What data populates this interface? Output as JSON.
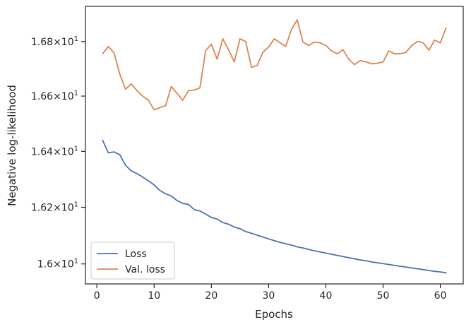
{
  "chart_data": {
    "type": "line",
    "title": "",
    "xlabel": "Epochs",
    "ylabel": "Negative log-likelihood",
    "yscale": "log",
    "xlim": [
      -2,
      64
    ],
    "ylim": [
      15.93,
      16.93
    ],
    "grid": false,
    "legend_position": "lower-left",
    "x_ticks": [
      {
        "value": 0,
        "label": "0"
      },
      {
        "value": 10,
        "label": "10"
      },
      {
        "value": 20,
        "label": "20"
      },
      {
        "value": 30,
        "label": "30"
      },
      {
        "value": 40,
        "label": "40"
      },
      {
        "value": 50,
        "label": "50"
      },
      {
        "value": 60,
        "label": "60"
      }
    ],
    "y_ticks": [
      {
        "value": 16.0,
        "mant": "1.6",
        "exp": "1"
      },
      {
        "value": 16.2,
        "mant": "1.62",
        "exp": "1"
      },
      {
        "value": 16.4,
        "mant": "1.64",
        "exp": "1"
      },
      {
        "value": 16.6,
        "mant": "1.66",
        "exp": "1"
      },
      {
        "value": 16.8,
        "mant": "1.68",
        "exp": "1"
      }
    ],
    "x": [
      1,
      2,
      3,
      4,
      5,
      6,
      7,
      8,
      9,
      10,
      11,
      12,
      13,
      14,
      15,
      16,
      17,
      18,
      19,
      20,
      21,
      22,
      23,
      24,
      25,
      26,
      27,
      28,
      29,
      30,
      31,
      32,
      33,
      34,
      35,
      36,
      37,
      38,
      39,
      40,
      41,
      42,
      43,
      44,
      45,
      46,
      47,
      48,
      49,
      50,
      51,
      52,
      53,
      54,
      55,
      56,
      57,
      58,
      59,
      60,
      61
    ],
    "series": [
      {
        "name": "Loss",
        "color": "#4c72b0",
        "values": [
          16.44,
          16.395,
          16.398,
          16.388,
          16.35,
          16.33,
          16.32,
          16.308,
          16.294,
          16.28,
          16.26,
          16.248,
          16.24,
          16.224,
          16.214,
          16.21,
          16.192,
          16.187,
          16.176,
          16.164,
          16.158,
          16.146,
          16.14,
          16.13,
          16.124,
          16.114,
          16.108,
          16.101,
          16.095,
          16.088,
          16.082,
          16.076,
          16.071,
          16.066,
          16.06,
          16.056,
          16.051,
          16.046,
          16.042,
          16.038,
          16.034,
          16.03,
          16.026,
          16.022,
          16.018,
          16.014,
          16.011,
          16.007,
          16.004,
          16.001,
          15.998,
          15.995,
          15.992,
          15.989,
          15.986,
          15.983,
          15.98,
          15.977,
          15.974,
          15.972,
          15.969
        ]
      },
      {
        "name": "Val. loss",
        "color": "#dd8452",
        "values": [
          16.755,
          16.782,
          16.758,
          16.68,
          16.625,
          16.645,
          16.62,
          16.6,
          16.585,
          16.55,
          16.558,
          16.565,
          16.635,
          16.61,
          16.585,
          16.62,
          16.622,
          16.63,
          16.767,
          16.79,
          16.735,
          16.81,
          16.77,
          16.725,
          16.81,
          16.8,
          16.705,
          16.712,
          16.76,
          16.78,
          16.81,
          16.795,
          16.782,
          16.845,
          16.88,
          16.798,
          16.785,
          16.798,
          16.795,
          16.785,
          16.765,
          16.755,
          16.77,
          16.735,
          16.715,
          16.73,
          16.725,
          16.718,
          16.72,
          16.725,
          16.765,
          16.755,
          16.755,
          16.76,
          16.785,
          16.8,
          16.795,
          16.768,
          16.805,
          16.795,
          16.85
        ]
      }
    ]
  }
}
